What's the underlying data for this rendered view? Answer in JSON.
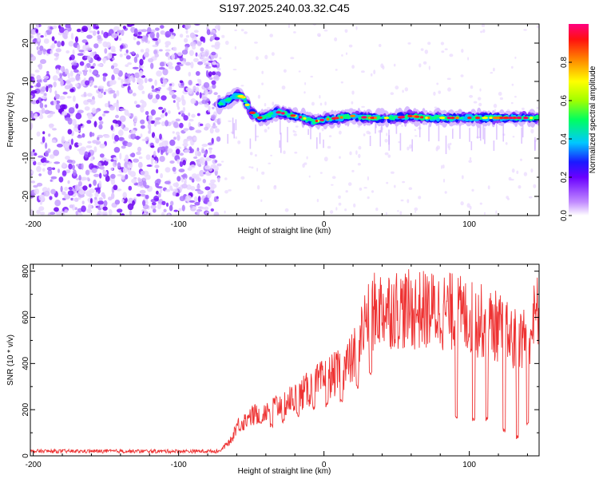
{
  "title": "S197.2025.240.03.32.C45",
  "chart_data": [
    {
      "type": "heatmap",
      "name": "spectrogram",
      "xlabel": "Height of straight line (km)",
      "ylabel": "Frequency (Hz)",
      "xlim": [
        -202,
        148
      ],
      "ylim": [
        -25,
        25
      ],
      "xticks": [
        -200,
        -100,
        0,
        100
      ],
      "yticks": [
        -20,
        -10,
        0,
        10,
        20
      ],
      "noise_region_km": [
        -202,
        -72
      ],
      "signal_track": {
        "x": [
          -72,
          -66,
          -60,
          -56,
          -50,
          -44,
          -38,
          -32,
          -26,
          -20,
          -14,
          -8,
          0,
          10,
          20,
          30,
          40,
          50,
          60,
          70,
          80,
          90,
          100,
          110,
          120,
          130,
          140,
          148
        ],
        "y": [
          4,
          5,
          6.5,
          6,
          2,
          0.5,
          1,
          2,
          1.5,
          1,
          0.5,
          -0.5,
          0,
          0.5,
          1,
          0.5,
          0.5,
          0.5,
          1,
          0.5,
          0.5,
          0.5,
          0.5,
          0.5,
          0.5,
          0.5,
          0.5,
          0.5
        ]
      },
      "colorbar": {
        "label": "Normalized spectral amplitude",
        "range": [
          0.0,
          1.0
        ],
        "ticks": [
          0.0,
          0.2,
          0.4,
          0.6,
          0.8
        ]
      }
    },
    {
      "type": "line",
      "name": "snr",
      "xlabel": "Height of straight line (km)",
      "ylabel": "SNR (10 * v/v)",
      "xlim": [
        -202,
        148
      ],
      "ylim": [
        0,
        830
      ],
      "xticks": [
        -200,
        -100,
        0,
        100
      ],
      "yticks": [
        0,
        200,
        400,
        600,
        800
      ],
      "color": "#ee3333",
      "envelope": {
        "x": [
          -202,
          -72,
          -65,
          -60,
          -50,
          -40,
          -30,
          -20,
          -10,
          0,
          10,
          20,
          30,
          40,
          50,
          60,
          70,
          80,
          90,
          100,
          110,
          120,
          130,
          140,
          148
        ],
        "y": [
          20,
          20,
          60,
          130,
          170,
          200,
          220,
          250,
          290,
          330,
          360,
          420,
          610,
          640,
          640,
          630,
          630,
          630,
          620,
          600,
          580,
          560,
          500,
          520,
          640
        ]
      },
      "dropouts": [
        {
          "x": -52,
          "y": 170
        },
        {
          "x": -43,
          "y": 150
        },
        {
          "x": -36,
          "y": 130
        },
        {
          "x": -28,
          "y": 150
        },
        {
          "x": -18,
          "y": 180
        },
        {
          "x": -7,
          "y": 210
        },
        {
          "x": 2,
          "y": 220
        },
        {
          "x": 12,
          "y": 240
        },
        {
          "x": 23,
          "y": 300
        },
        {
          "x": 32,
          "y": 360
        },
        {
          "x": 91,
          "y": 170
        },
        {
          "x": 103,
          "y": 160
        },
        {
          "x": 112,
          "y": 160
        },
        {
          "x": 124,
          "y": 110
        },
        {
          "x": 133,
          "y": 80
        },
        {
          "x": 140,
          "y": 140
        }
      ]
    }
  ]
}
